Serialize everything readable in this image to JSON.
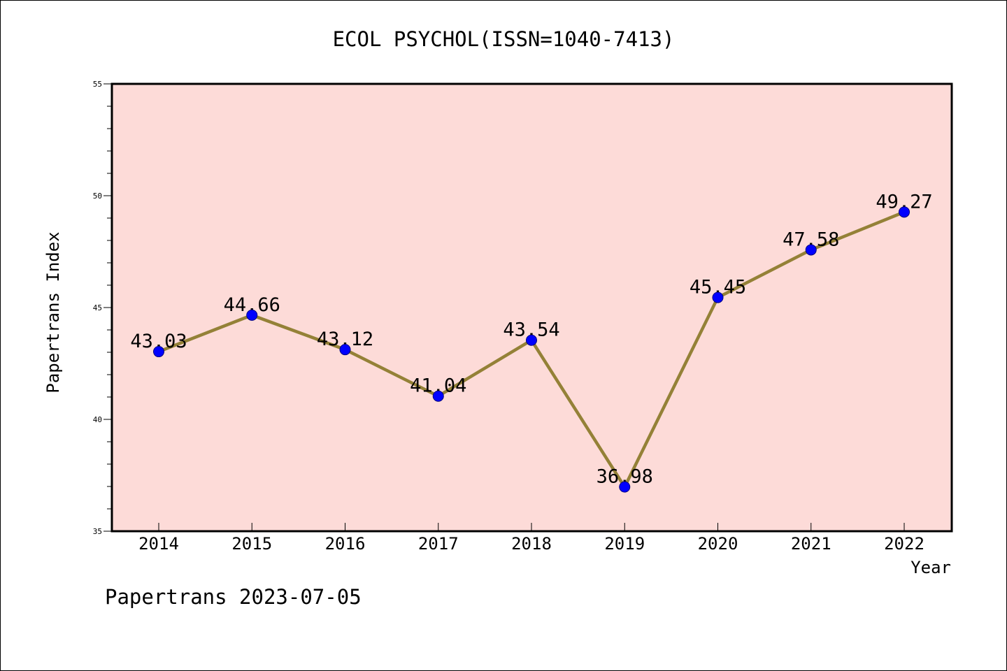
{
  "chart_data": {
    "type": "line",
    "title": "ECOL PSYCHOL(ISSN=1040-7413)",
    "xlabel": "Year",
    "ylabel": "Papertrans Index",
    "footer": "Papertrans 2023-07-05",
    "categories": [
      "2014",
      "2015",
      "2016",
      "2017",
      "2018",
      "2019",
      "2020",
      "2021",
      "2022"
    ],
    "values": [
      43.03,
      44.66,
      43.12,
      41.04,
      43.54,
      36.98,
      45.45,
      47.58,
      49.27
    ],
    "data_labels": [
      "43.03",
      "44.66",
      "43.12",
      "41.04",
      "43.54",
      "36.98",
      "45.45",
      "47.58",
      "49.27"
    ],
    "ylim": [
      35,
      55
    ],
    "yticks": [
      "35",
      "40",
      "45",
      "50",
      "55"
    ],
    "grid": false,
    "colors": {
      "plot_background": "#fddbd8",
      "line": "#948137",
      "marker": "#0000ff",
      "marker_edge": "#000080"
    }
  }
}
